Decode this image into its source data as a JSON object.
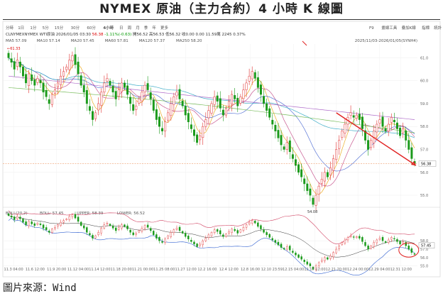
{
  "header": {
    "title": "NYMEX 原油（主力合約）4 小時 K 線圖"
  },
  "footer": {
    "source_label": "圖片來源：",
    "source_value": "Wind"
  },
  "toolbar": {
    "periods": [
      "分時",
      "1日",
      "1分",
      "5分",
      "15分",
      "30分",
      "60分",
      "4小時",
      "日",
      "周",
      "月",
      "季",
      "年",
      "更多"
    ],
    "active_period": "4小時",
    "right_tools": [
      "F9",
      "畫線工具",
      "疊加K線",
      "指標",
      "統計",
      "工具"
    ]
  },
  "info": {
    "symbol": "CLNYMEXNYMEX WTI原油",
    "datetime": "2026/01/05 03:30",
    "price": "56.38",
    "change": "-1.11%(-0.63)",
    "open_label": "開",
    "open": "56.52",
    "high_label": "高",
    "high": "56.53",
    "low_label": "低",
    "low": "56.32",
    "chg_label": "收",
    "chg": "0.00",
    "vol": "0.00",
    "amt": "11.59萬",
    "oi": "2245",
    "amp": "0.37%",
    "range": "2025/11/03-2026/01/05(SYNH4)"
  },
  "ma_legend": [
    {
      "label": "MA5 57.09",
      "color": "#e8a000"
    },
    {
      "label": "MA10 57.14",
      "color": "#c04080"
    },
    {
      "label": "MA20 57.45",
      "color": "#4060d0"
    },
    {
      "label": "MA60 57.81",
      "color": "#20a0c0"
    },
    {
      "label": "MA120 57.37",
      "color": "#60b040"
    },
    {
      "label": "MA250 58.20",
      "color": "#a050c0"
    }
  ],
  "boll_legend": {
    "name": "BOLL(20,2)",
    "boll": "BOLL: 57.45",
    "upper": "UPPER: 58.39",
    "lower": "LOWER: 56.52"
  },
  "chart_data": {
    "type": "candlestick",
    "x_ticks": [
      "11.3 04:00",
      "11.6 12:00",
      "11.9 20:00",
      "11.12 04:00",
      "11.14 12:00",
      "11.18 20:00",
      "11.21 00:00",
      "11.25 08:00",
      "11.27 12:00",
      "12.2 16:00",
      "12.4 12:00",
      "12.8 16:00",
      "12.10 23:59",
      "12.15 04:00",
      "12.17 12:00",
      "12.21 20:00",
      "12.24 00:00",
      "12.29 04:00",
      "12.31 12:00"
    ],
    "y_ticks": [
      61.0,
      60.0,
      59.0,
      58.0,
      57.0,
      56.0,
      55.0
    ],
    "ylim": [
      54.6,
      61.6
    ],
    "price_marker_high": "61.33",
    "price_marker_low": "54.08",
    "last_price_tag": "56.38",
    "closes": [
      61.0,
      60.8,
      60.5,
      60.9,
      60.6,
      60.2,
      59.9,
      60.3,
      60.0,
      59.8,
      60.1,
      59.9,
      59.5,
      59.3,
      59.0,
      59.4,
      59.6,
      59.9,
      60.2,
      60.4,
      60.6,
      60.9,
      61.1,
      60.7,
      60.3,
      59.8,
      59.5,
      59.0,
      58.7,
      58.3,
      58.6,
      59.0,
      59.5,
      59.9,
      60.1,
      59.8,
      59.5,
      59.2,
      59.6,
      59.9,
      59.7,
      59.4,
      59.0,
      58.7,
      58.9,
      59.2,
      59.5,
      59.8,
      59.6,
      59.2,
      58.7,
      58.3,
      58.0,
      57.8,
      58.2,
      58.6,
      59.0,
      59.3,
      59.5,
      59.2,
      58.9,
      58.5,
      58.2,
      57.9,
      57.6,
      57.3,
      57.6,
      58.0,
      58.3,
      58.7,
      59.0,
      59.3,
      59.1,
      58.8,
      58.5,
      58.8,
      59.1,
      59.4,
      59.2,
      58.9,
      59.3,
      59.6,
      59.9,
      60.2,
      60.4,
      60.1,
      59.7,
      59.4,
      59.0,
      58.7,
      58.4,
      58.1,
      57.8,
      57.5,
      57.2,
      57.0,
      57.3,
      56.9,
      56.6,
      56.3,
      56.0,
      55.8,
      55.5,
      55.2,
      55.0,
      54.6,
      55.0,
      55.4,
      55.7,
      56.0,
      55.8,
      56.2,
      56.6,
      57.0,
      57.4,
      57.8,
      58.1,
      58.4,
      58.6,
      58.4,
      58.5,
      58.3,
      57.9,
      57.4,
      57.0,
      57.4,
      57.8,
      58.1,
      58.3,
      58.0,
      57.8,
      58.1,
      58.4,
      58.2,
      57.9,
      57.6,
      57.9,
      57.4,
      57.0,
      56.6,
      56.38
    ],
    "boll_ylim": [
      55.4,
      60.8
    ],
    "boll_y_ticks": [
      58.0,
      57.0,
      56.0,
      55.0
    ],
    "boll_last_tag": "57.45"
  }
}
